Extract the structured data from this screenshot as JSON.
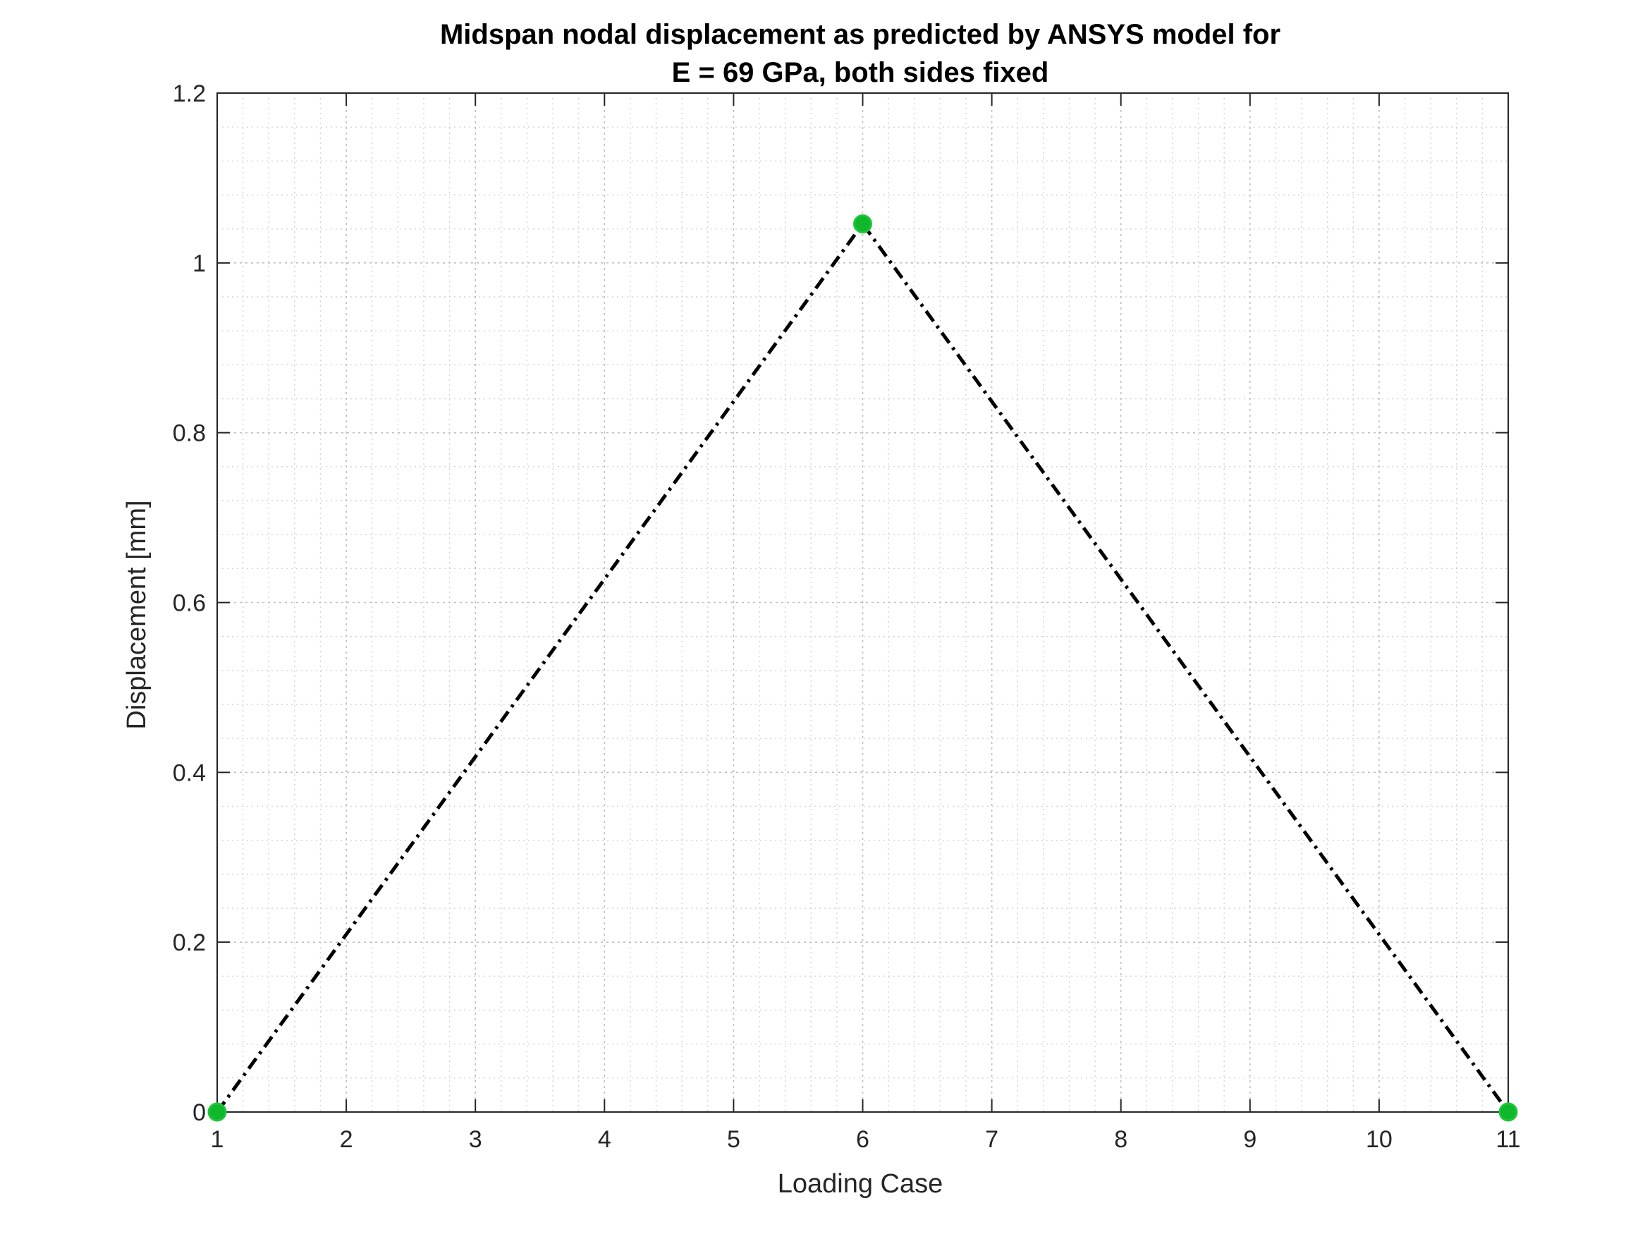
{
  "chart_data": {
    "type": "line",
    "title_line1": "Midspan nodal displacement as predicted by ANSYS model for",
    "title_line2": "E = 69 GPa, both sides fixed",
    "xlabel": "Loading Case",
    "ylabel": "Displacement [mm]",
    "xlim": [
      1,
      11
    ],
    "ylim": [
      0,
      1.2
    ],
    "x_ticks": [
      1,
      2,
      3,
      4,
      5,
      6,
      7,
      8,
      9,
      10,
      11
    ],
    "x_tick_labels": [
      "1",
      "2",
      "3",
      "4",
      "5",
      "6",
      "7",
      "8",
      "9",
      "10",
      "11"
    ],
    "y_ticks": [
      0,
      0.2,
      0.4,
      0.6,
      0.8,
      1,
      1.2
    ],
    "y_tick_labels": [
      "0",
      "0.2",
      "0.4",
      "0.6",
      "0.8",
      "1",
      "1.2"
    ],
    "grid": true,
    "minor_grid": true,
    "series": [
      {
        "x": [
          1,
          6,
          11
        ],
        "values": [
          0,
          1.046,
          0
        ],
        "line_style": "dash-dot",
        "line_color": "#000000",
        "marker": "circle",
        "marker_color": "#0eb82a"
      }
    ]
  }
}
